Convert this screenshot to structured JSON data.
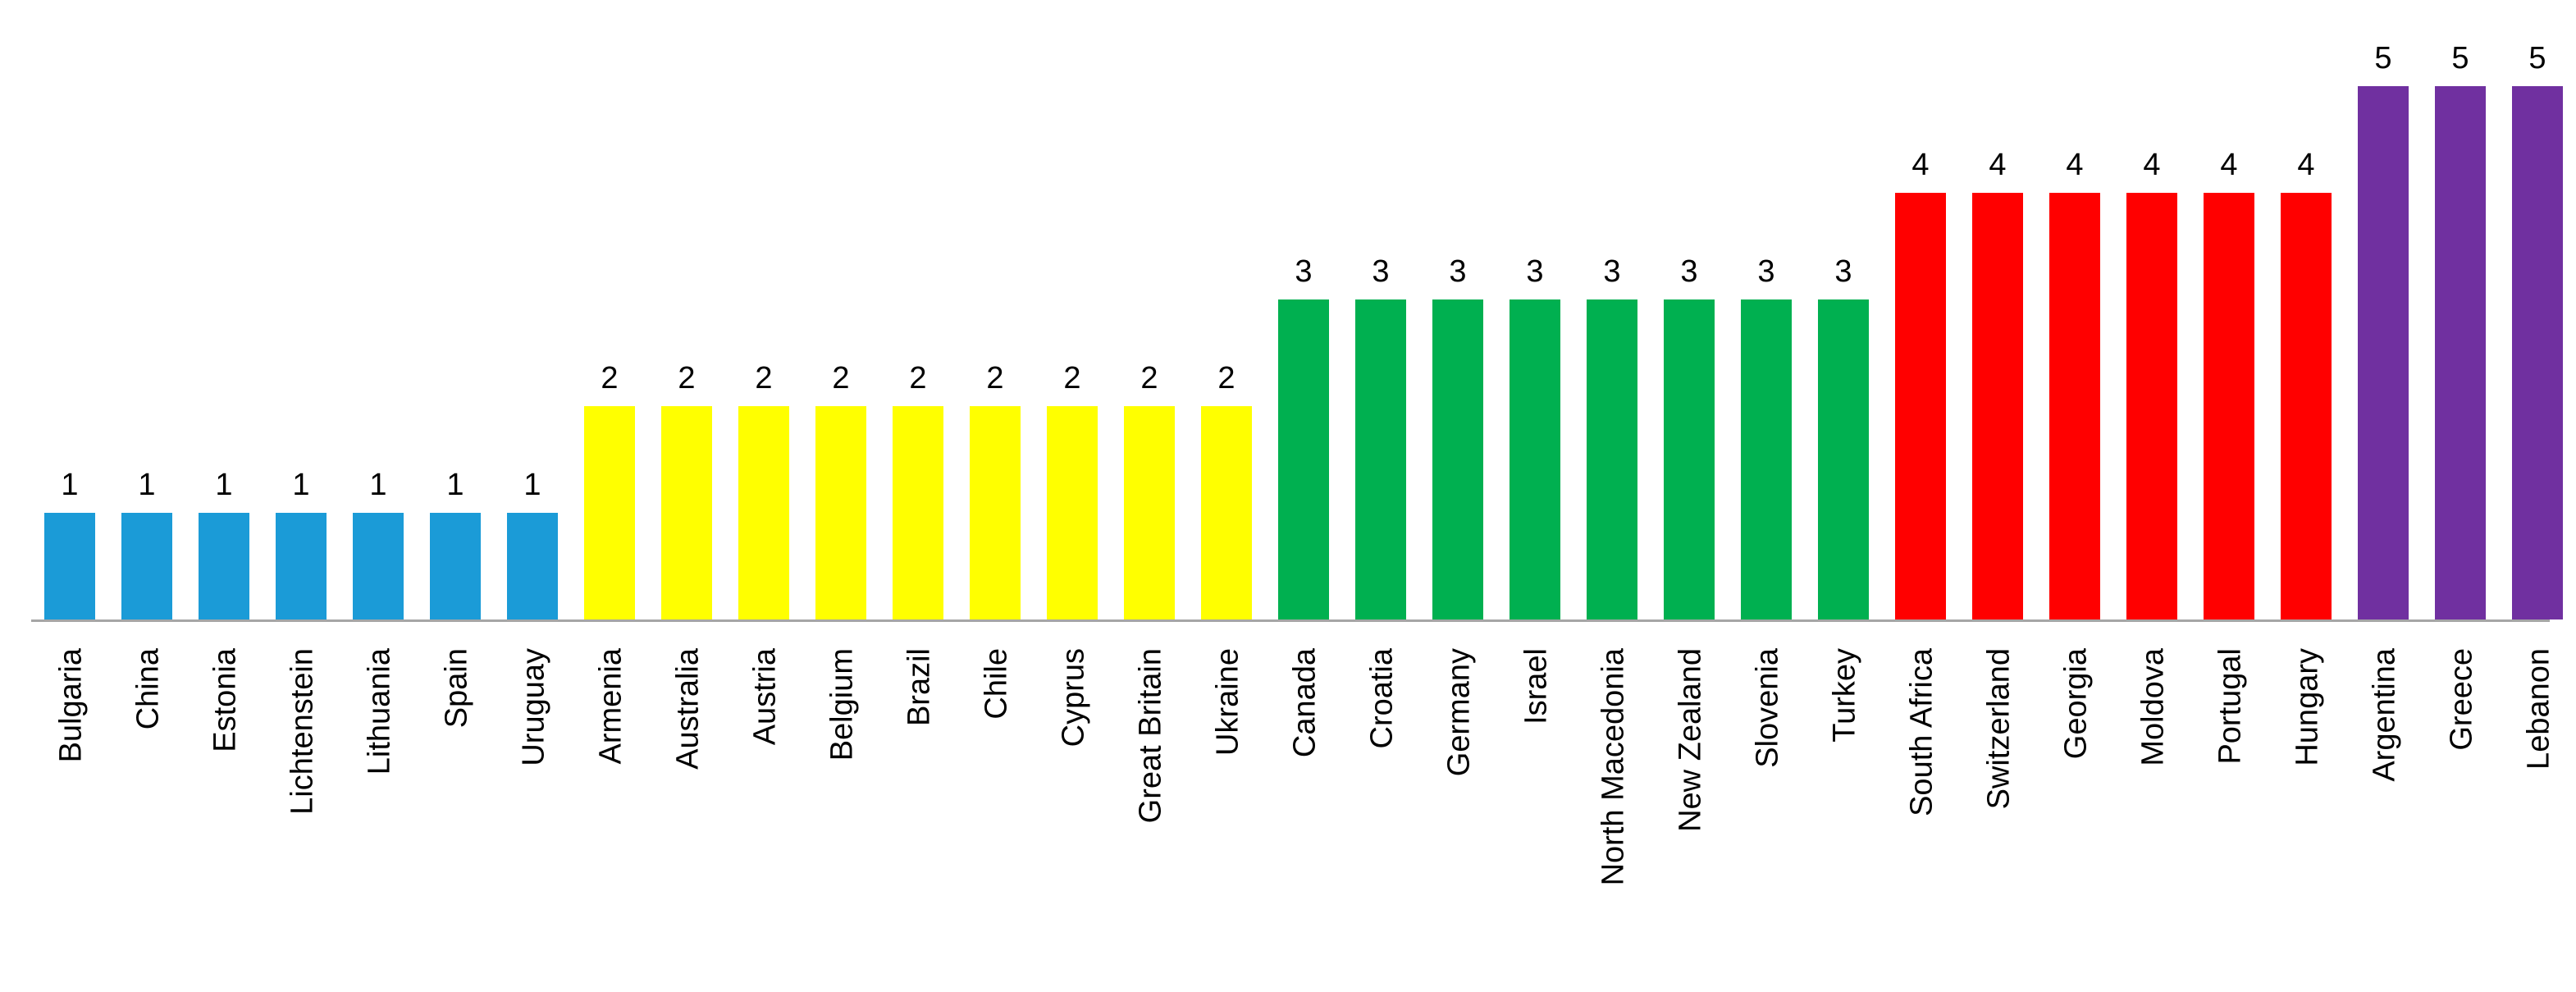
{
  "chart_data": {
    "type": "bar",
    "title": "",
    "xlabel": "",
    "ylabel": "",
    "ylim": [
      0,
      5
    ],
    "grid": false,
    "legend": "none",
    "categories": [
      "Bulgaria",
      "China",
      "Estonia",
      "Lichtenstein",
      "Lithuania",
      "Spain",
      "Uruguay",
      "Armenia",
      "Australia",
      "Austria",
      "Belgium",
      "Brazil",
      "Chile",
      "Cyprus",
      "Great Britain",
      "Ukraine",
      "Canada",
      "Croatia",
      "Germany",
      "Israel",
      "North Macedonia",
      "New Zealand",
      "Slovenia",
      "Turkey",
      "South Africa",
      "Switzerland",
      "Georgia",
      "Moldova",
      "Portugal",
      "Hungary",
      "Argentina",
      "Greece",
      "Lebanon"
    ],
    "values": [
      1,
      1,
      1,
      1,
      1,
      1,
      1,
      2,
      2,
      2,
      2,
      2,
      2,
      2,
      2,
      2,
      3,
      3,
      3,
      3,
      3,
      3,
      3,
      3,
      4,
      4,
      4,
      4,
      4,
      4,
      5,
      5,
      5
    ],
    "data_labels": [
      "1",
      "1",
      "1",
      "1",
      "1",
      "1",
      "1",
      "2",
      "2",
      "2",
      "2",
      "2",
      "2",
      "2",
      "2",
      "2",
      "3",
      "3",
      "3",
      "3",
      "3",
      "3",
      "3",
      "3",
      "4",
      "4",
      "4",
      "4",
      "4",
      "4",
      "5",
      "5",
      "5"
    ],
    "colors_by_value": {
      "1": "#1B9BD7",
      "2": "#FFFF00",
      "3": "#00B050",
      "4": "#FF0000",
      "5": "#7030A0"
    },
    "axis_color": "#A6A6A6",
    "label_color": "#000000"
  }
}
